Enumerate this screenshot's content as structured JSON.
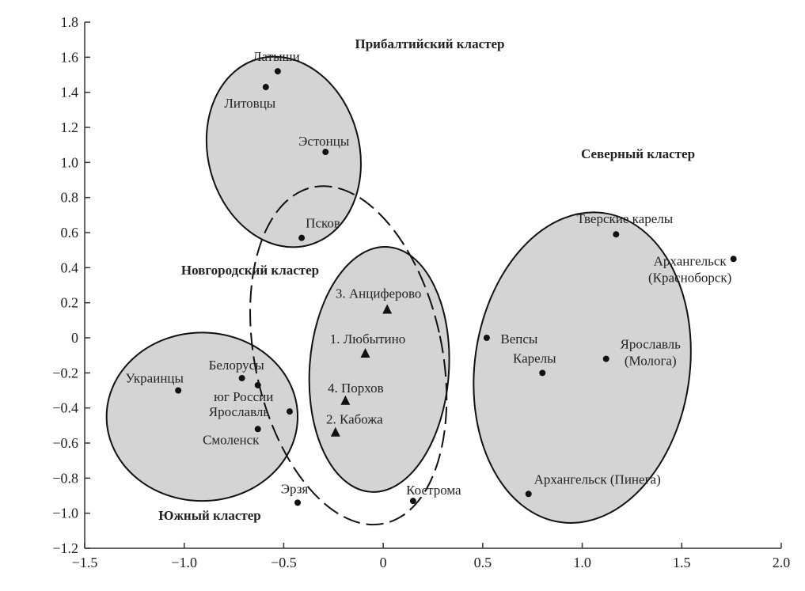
{
  "chart_data": {
    "type": "scatter",
    "title": "",
    "xlabel": "",
    "ylabel": "",
    "xlim": [
      -1.5,
      2.0
    ],
    "ylim": [
      -1.2,
      1.8
    ],
    "xticks": [
      "−1.5",
      "−1.0",
      "−0.5",
      "0",
      "0.5",
      "1.0",
      "1.5",
      "2.0"
    ],
    "xtick_values": [
      -1.5,
      -1.0,
      -0.5,
      0,
      0.5,
      1.0,
      1.5,
      2.0
    ],
    "yticks": [
      "1.8",
      "1.6",
      "1.4",
      "1.2",
      "1.0",
      "0.8",
      "0.6",
      "0.4",
      "0.2",
      "0",
      "−0.2",
      "−0.4",
      "−0.6",
      "−0.8",
      "−1.0",
      "−1.2"
    ],
    "ytick_values": [
      1.8,
      1.6,
      1.4,
      1.2,
      1.0,
      0.8,
      0.6,
      0.4,
      0.2,
      0,
      -0.2,
      -0.4,
      -0.6,
      -0.8,
      -1.0,
      -1.2
    ],
    "grid": false,
    "fill_color": "#d4d4d4",
    "points": [
      {
        "label": "Латыши",
        "x": -0.53,
        "y": 1.52,
        "marker": "circle"
      },
      {
        "label": "Литовцы",
        "x": -0.59,
        "y": 1.43,
        "marker": "circle"
      },
      {
        "label": "Эстонцы",
        "x": -0.29,
        "y": 1.06,
        "marker": "circle"
      },
      {
        "label": "Псков",
        "x": -0.41,
        "y": 0.57,
        "marker": "circle"
      },
      {
        "label": "Тверские карелы",
        "x": 1.17,
        "y": 0.59,
        "marker": "circle"
      },
      {
        "label": "Архангельск",
        "label2": "(Красноборск)",
        "x": 1.76,
        "y": 0.45,
        "marker": "circle"
      },
      {
        "label": "Вепсы",
        "x": 0.52,
        "y": 0.0,
        "marker": "circle"
      },
      {
        "label": "Ярославль",
        "label2": "(Молога)",
        "x": 1.12,
        "y": -0.12,
        "marker": "circle"
      },
      {
        "label": "Карелы",
        "x": 0.8,
        "y": -0.2,
        "marker": "circle"
      },
      {
        "label": "Архангельск (Пинега)",
        "x": 0.73,
        "y": -0.89,
        "marker": "circle"
      },
      {
        "label": "Кострома",
        "x": 0.15,
        "y": -0.93,
        "marker": "circle"
      },
      {
        "label": "Эрзя",
        "x": -0.43,
        "y": -0.94,
        "marker": "circle"
      },
      {
        "label": "Украинцы",
        "x": -1.03,
        "y": -0.3,
        "marker": "circle"
      },
      {
        "label": "Белорусы",
        "x": -0.71,
        "y": -0.23,
        "marker": "circle"
      },
      {
        "label": "юг России",
        "x": -0.63,
        "y": -0.27,
        "marker": "circle"
      },
      {
        "label": "Ярославль",
        "x": -0.47,
        "y": -0.42,
        "marker": "circle"
      },
      {
        "label": "Смоленск",
        "x": -0.63,
        "y": -0.52,
        "marker": "circle"
      },
      {
        "label": "3. Анциферово",
        "x": 0.02,
        "y": 0.16,
        "marker": "triangle"
      },
      {
        "label": "1. Любытино",
        "x": -0.09,
        "y": -0.09,
        "marker": "triangle"
      },
      {
        "label": "4. Порхов",
        "x": -0.19,
        "y": -0.36,
        "marker": "triangle"
      },
      {
        "label": "2. Кабожа",
        "x": -0.24,
        "y": -0.54,
        "marker": "triangle"
      }
    ],
    "clusters": [
      {
        "name": "Прибалтийский кластер",
        "cx": -0.5,
        "cy": 1.06,
        "rx": 0.38,
        "ry": 0.55,
        "angle": -15,
        "style": "filled"
      },
      {
        "name": "Северный кластер",
        "cx": 1.0,
        "cy": -0.17,
        "rx": 0.54,
        "ry": 0.89,
        "angle": 8,
        "style": "filled"
      },
      {
        "name": "Южный кластер",
        "cx": -0.91,
        "cy": -0.45,
        "rx": 0.48,
        "ry": 0.48,
        "angle": 0,
        "style": "filled"
      },
      {
        "name": "Новгородский кластер",
        "cx": -0.02,
        "cy": -0.18,
        "rx": 0.35,
        "ry": 0.7,
        "angle": 4,
        "style": "filled"
      },
      {
        "name": "",
        "cx": -0.175,
        "cy": -0.1,
        "rx": 0.47,
        "ry": 0.98,
        "angle": -12,
        "style": "dashed"
      }
    ]
  }
}
